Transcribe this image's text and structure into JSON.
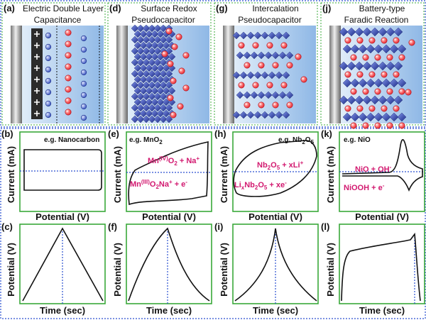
{
  "panels": [
    {
      "label": "(a)",
      "title": [
        "Electric Double Layer",
        "Capacitance"
      ]
    },
    {
      "label": "(d)",
      "title": [
        "Surface Redox",
        "Pseudocapacitor"
      ]
    },
    {
      "label": "(g)",
      "title": [
        "Intercalation",
        "Pseudocapacitor"
      ]
    },
    {
      "label": "(j)",
      "title": [
        "Battery-type",
        "Faradic Reaction"
      ]
    }
  ],
  "cv_plots": [
    {
      "label": "(b)",
      "y_label": "Current (mA)",
      "x_label": "Potential (V)",
      "note": [
        {
          "text": "e.g. Nanocarbon"
        }
      ],
      "reactions": []
    },
    {
      "label": "(e)",
      "y_label": "Current (mA)",
      "x_label": "Potential (V)",
      "note": [
        {
          "text": "e.g. MnO"
        },
        {
          "text": "2",
          "position": "sub"
        }
      ],
      "reactions": [
        [
          {
            "text": "Mn"
          },
          {
            "text": "(IV)",
            "position": "super"
          },
          {
            "text": "O"
          },
          {
            "text": "2",
            "position": "sub"
          },
          {
            "text": " + Na"
          },
          {
            "text": "+",
            "position": "super"
          }
        ],
        [
          {
            "text": "Mn"
          },
          {
            "text": "(III)",
            "position": "super"
          },
          {
            "text": "O"
          },
          {
            "text": "2",
            "position": "sub"
          },
          {
            "text": "Na"
          },
          {
            "text": "+",
            "position": "super"
          },
          {
            "text": " + e"
          },
          {
            "text": "-",
            "position": "super"
          }
        ]
      ]
    },
    {
      "label": "(h)",
      "y_label": "Current (mA)",
      "x_label": "Potential (V)",
      "note": [
        {
          "text": "e.g. Nb"
        },
        {
          "text": "2",
          "position": "sub"
        },
        {
          "text": "O"
        },
        {
          "text": "5",
          "position": "sub"
        }
      ],
      "reactions": [
        [
          {
            "text": "Nb"
          },
          {
            "text": "2",
            "position": "sub"
          },
          {
            "text": "O"
          },
          {
            "text": "5",
            "position": "sub"
          },
          {
            "text": " + xLi"
          },
          {
            "text": "+",
            "position": "super"
          }
        ],
        [
          {
            "text": "Li"
          },
          {
            "text": "x",
            "position": "sub"
          },
          {
            "text": "Nb"
          },
          {
            "text": "2",
            "position": "sub"
          },
          {
            "text": "O"
          },
          {
            "text": "5",
            "position": "sub"
          },
          {
            "text": " + xe"
          },
          {
            "text": "-",
            "position": "super"
          }
        ]
      ]
    },
    {
      "label": "(k)",
      "y_label": "Current (mA)",
      "x_label": "Potential (V)",
      "note": [
        {
          "text": "e.g. NiO"
        }
      ],
      "reactions": [
        [
          {
            "text": "NiO + OH"
          },
          {
            "text": "-",
            "position": "super"
          }
        ],
        [
          {
            "text": "NiOOH + e"
          },
          {
            "text": "-",
            "position": "super"
          }
        ]
      ]
    }
  ],
  "gcd_plots": [
    {
      "label": "(c)",
      "y_label": "Potential (V)",
      "x_label": "Time (sec)"
    },
    {
      "label": "(f)",
      "y_label": "Potential (V)",
      "x_label": "Time (sec)"
    },
    {
      "label": "(i)",
      "y_label": "Potential (V)",
      "x_label": "Time (sec)"
    },
    {
      "label": "(l)",
      "y_label": "Potential (V)",
      "x_label": "Time (sec)"
    }
  ]
}
